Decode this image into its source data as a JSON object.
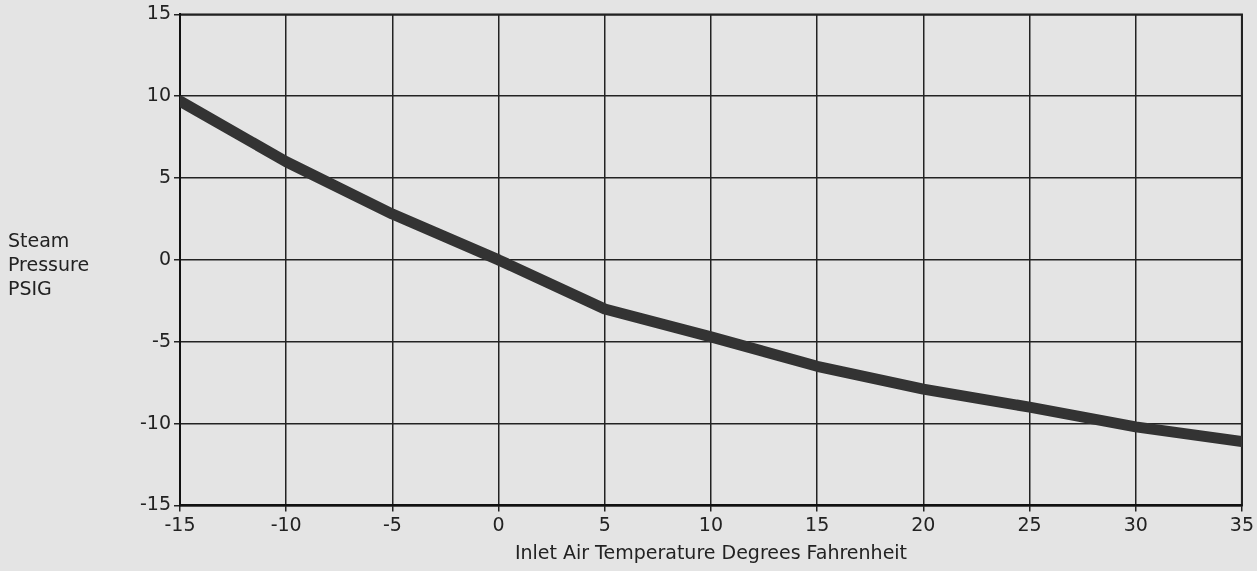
{
  "chart_data": {
    "type": "line",
    "xlabel": "Inlet Air Temperature Degrees Fahrenheit",
    "ylabel": "Steam Pressure PSIG",
    "x": [
      -15,
      -10,
      -5,
      0,
      5,
      10,
      15,
      20,
      25,
      30,
      35
    ],
    "series": [
      {
        "color": "#333333",
        "values": [
          9.7,
          6,
          2.8,
          0,
          -3,
          -4.7,
          -6.5,
          -7.9,
          -9,
          -10.2,
          -11.1
        ]
      }
    ],
    "xlim": [
      -15,
      35
    ],
    "xticks": [
      -15,
      -10,
      -5,
      0,
      5,
      10,
      15,
      20,
      25,
      30,
      35
    ],
    "ylim": [
      -15,
      15
    ],
    "yticks": [
      -15,
      -10,
      -5,
      0,
      5,
      10,
      15
    ],
    "grid": true,
    "legend": false,
    "marker": "none",
    "line_style": "solid"
  }
}
